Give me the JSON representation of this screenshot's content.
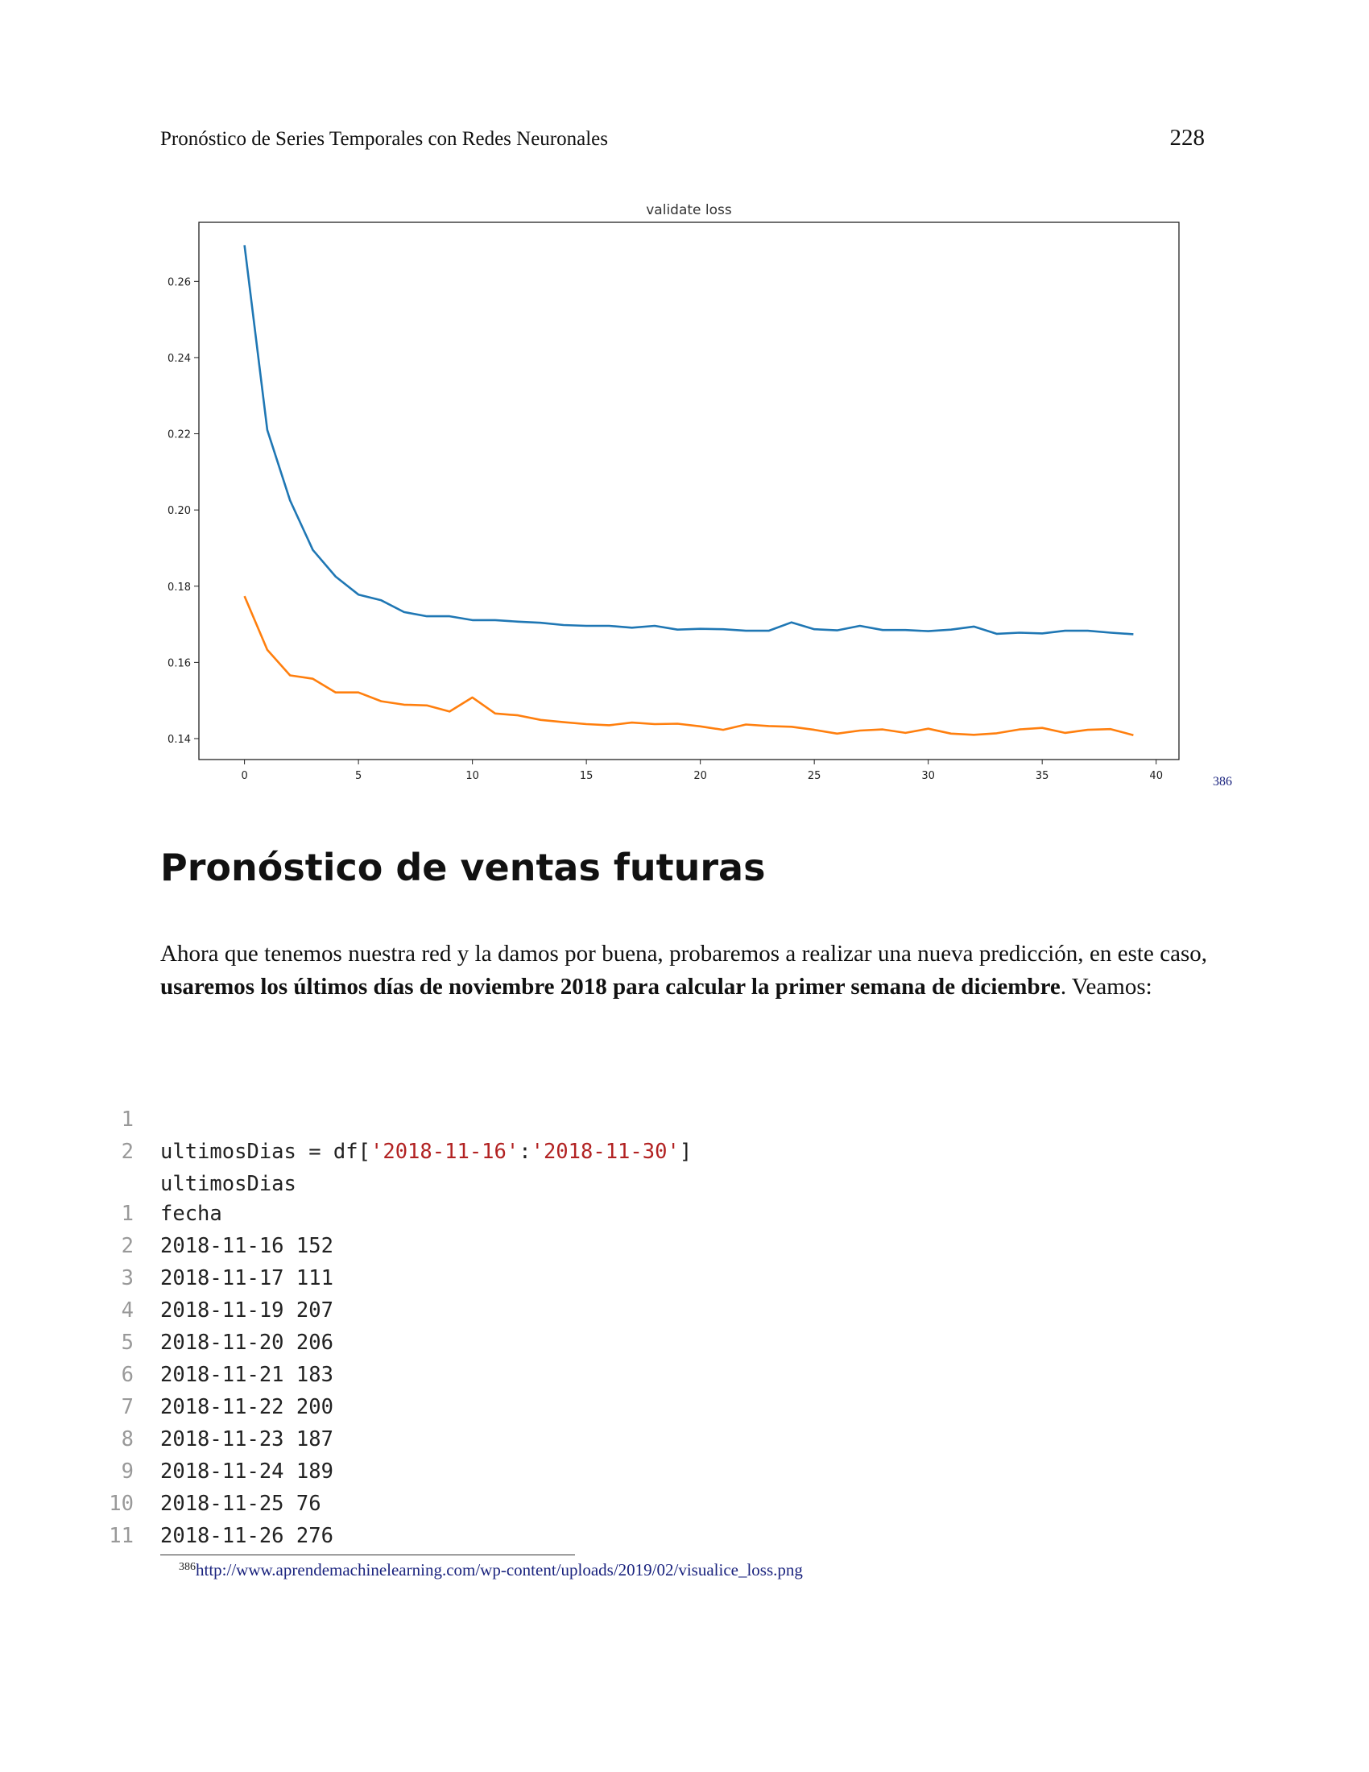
{
  "header": {
    "title": "Pronóstico de Series Temporales con Redes Neuronales",
    "page_number": "228"
  },
  "chart_data": {
    "type": "line",
    "title": "validate loss",
    "xlabel": "",
    "ylabel": "",
    "xlim": [
      -2,
      41
    ],
    "ylim": [
      0.1345,
      0.2755
    ],
    "x_ticks": [
      0,
      5,
      10,
      15,
      20,
      25,
      30,
      35,
      40
    ],
    "y_ticks": [
      0.14,
      0.16,
      0.18,
      0.2,
      0.22,
      0.24,
      0.26
    ],
    "y_tick_labels": [
      "0.14",
      "0.16",
      "0.18",
      "0.20",
      "0.22",
      "0.24",
      "0.26"
    ],
    "grid": false,
    "x": [
      0,
      1,
      2,
      3,
      4,
      5,
      6,
      7,
      8,
      9,
      10,
      11,
      12,
      13,
      14,
      15,
      16,
      17,
      18,
      19,
      20,
      21,
      22,
      23,
      24,
      25,
      26,
      27,
      28,
      29,
      30,
      31,
      32,
      33,
      34,
      35,
      36,
      37,
      38,
      39
    ],
    "series": [
      {
        "color": "#1f77b4",
        "values": [
          0.2695,
          0.221,
          0.2025,
          0.1895,
          0.1825,
          0.1778,
          0.1763,
          0.1732,
          0.1721,
          0.1721,
          0.1711,
          0.1711,
          0.1707,
          0.1704,
          0.1698,
          0.1696,
          0.1696,
          0.1691,
          0.1696,
          0.1686,
          0.1688,
          0.1687,
          0.1683,
          0.1683,
          0.1705,
          0.1687,
          0.1684,
          0.1696,
          0.1685,
          0.1685,
          0.1682,
          0.1686,
          0.1694,
          0.1675,
          0.1678,
          0.1676,
          0.1683,
          0.1683,
          0.1678,
          0.1674
        ]
      },
      {
        "color": "#ff7f0e",
        "values": [
          0.1774,
          0.1633,
          0.1566,
          0.1557,
          0.1521,
          0.1521,
          0.1498,
          0.1489,
          0.1487,
          0.1471,
          0.1508,
          0.1466,
          0.1461,
          0.1449,
          0.1443,
          0.1438,
          0.1435,
          0.1442,
          0.1438,
          0.1439,
          0.1432,
          0.1423,
          0.1437,
          0.1433,
          0.1431,
          0.1423,
          0.1413,
          0.1421,
          0.1424,
          0.1415,
          0.1426,
          0.1413,
          0.141,
          0.1414,
          0.1424,
          0.1428,
          0.1415,
          0.1423,
          0.1425,
          0.1409
        ]
      }
    ]
  },
  "footnote_marker": "386",
  "section_title": "Pronóstico de ventas futuras",
  "paragraph": {
    "text_start": "Ahora que tenemos nuestra red y la damos por buena, probaremos a realizar una nueva predicción, en este caso, ",
    "text_bold": "usaremos los últimos días de noviembre 2018 para calcular la primer semana de diciembre",
    "text_end": ". Veamos:"
  },
  "code_block_1": {
    "line_numbers": [
      "1",
      "2"
    ],
    "line1_prefix": "ultimosDias = df[",
    "line1_str1": "'2018-11-16'",
    "line1_colon": ":",
    "line1_str2": "'2018-11-30'",
    "line1_suffix": "]",
    "line2": "ultimosDias"
  },
  "code_block_2": {
    "line_numbers": [
      "1",
      "2",
      "3",
      "4",
      "5",
      "6",
      "7",
      "8",
      "9",
      "10",
      "11"
    ],
    "lines": [
      "fecha",
      "2018-11-16 152",
      "2018-11-17 111",
      "2018-11-19 207",
      "2018-11-20 206",
      "2018-11-21 183",
      "2018-11-22 200",
      "2018-11-23 187",
      "2018-11-24 189",
      "2018-11-25 76",
      "2018-11-26 276"
    ]
  },
  "footnote": {
    "number": "386",
    "link": "http://www.aprendemachinelearning.com/wp-content/uploads/2019/02/visualice_loss.png"
  }
}
